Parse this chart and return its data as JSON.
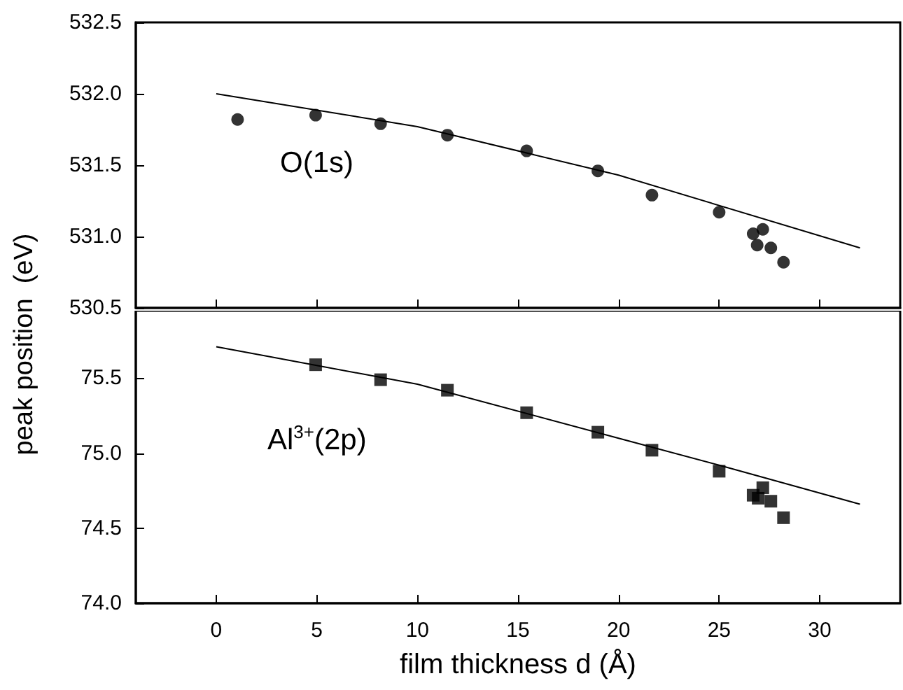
{
  "chart_data": [
    {
      "type": "scatter",
      "ylabel": "peak position  (eV)",
      "annotations": [
        "O(1s)"
      ],
      "xlim": [
        -4,
        34
      ],
      "xticks": [
        0,
        5,
        10,
        15,
        20,
        25,
        30
      ],
      "ylim": [
        530.5,
        532.5
      ],
      "yticks": [
        530.5,
        {
          "value": 531,
          "label": "531.0"
        },
        531.5,
        {
          "value": 532,
          "label": "532.0"
        },
        532.5
      ],
      "tick_labels": "y",
      "grid": false,
      "series": [
        {
          "color": "#000000",
          "marker": "circle",
          "x": [
            1.06,
            4.94,
            8.17,
            11.49,
            15.43,
            18.97,
            21.66,
            25.0,
            26.69,
            26.89,
            27.17,
            27.57,
            28.2
          ],
          "values": [
            531.82,
            531.85,
            531.79,
            531.71,
            531.6,
            531.46,
            531.29,
            531.17,
            531.02,
            530.94,
            531.05,
            530.92,
            530.82
          ]
        },
        {
          "type": "line",
          "color": "#000000",
          "marker": "none",
          "x": [
            0,
            10,
            20,
            32
          ],
          "values": [
            532.0,
            531.77,
            531.43,
            530.92
          ]
        }
      ]
    },
    {
      "type": "scatter",
      "xlabel": "film thickness d (Å)",
      "annotations": [
        "Al$^{3+}$(2p)"
      ],
      "xlim": [
        -4,
        34
      ],
      "xticks": [
        0,
        5,
        10,
        15,
        20,
        25,
        30
      ],
      "ylim": [
        74.0,
        75.95
      ],
      "yticks": [
        {
          "value": 74,
          "label": "74.0"
        },
        74.5,
        {
          "value": 75,
          "label": "75.0"
        },
        75.5
      ],
      "grid": false,
      "series": [
        {
          "color": "#000000",
          "marker": "square",
          "x": [
            4.94,
            8.17,
            11.49,
            15.43,
            18.97,
            21.66,
            25.0,
            26.69,
            26.94,
            27.17,
            27.57,
            28.2
          ],
          "values": [
            75.59,
            75.49,
            75.42,
            75.27,
            75.14,
            75.02,
            74.88,
            74.72,
            74.7,
            74.77,
            74.68,
            74.57
          ]
        },
        {
          "type": "line",
          "color": "#000000",
          "marker": "none",
          "x": [
            0,
            10,
            20,
            25,
            32
          ],
          "values": [
            75.71,
            75.46,
            75.1,
            74.92,
            74.66
          ]
        }
      ]
    }
  ]
}
